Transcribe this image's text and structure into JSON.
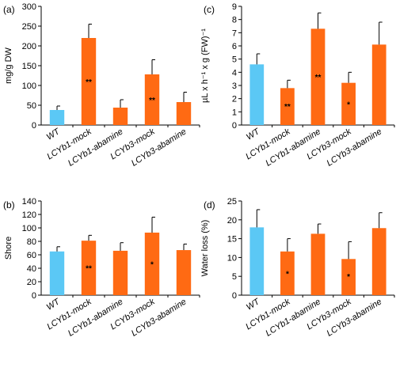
{
  "colors": {
    "control": "#5BC8F5",
    "treatment": "#FF6A13",
    "axis": "#000000"
  },
  "chart_data": [
    {
      "panel": "(a)",
      "type": "bar",
      "categories": [
        "WT",
        "LCYb1-mock",
        "LCYb1-abamine",
        "LCYb3-mock",
        "LCYb3-abamine"
      ],
      "values": [
        38,
        220,
        44,
        128,
        58
      ],
      "errors": [
        10,
        35,
        20,
        37,
        25
      ],
      "significance": [
        "",
        "**",
        "",
        "**",
        ""
      ],
      "ylabel": "mg/g DW",
      "ylim": [
        0,
        300
      ],
      "yticks": [
        "0",
        "50",
        "100",
        "150",
        "200",
        "250",
        "300"
      ]
    },
    {
      "panel": "(c)",
      "type": "bar",
      "categories": [
        "WT",
        "LCYb1-mock",
        "LCYb1-abamine",
        "LCYb3-mock",
        "LCYb3-abamine"
      ],
      "values": [
        4.6,
        2.8,
        7.3,
        3.2,
        6.1
      ],
      "errors": [
        0.8,
        0.6,
        1.2,
        0.8,
        1.7
      ],
      "significance": [
        "",
        "**",
        "**",
        "*",
        ""
      ],
      "ylabel": "µL x h⁻¹ x g (FW)⁻¹",
      "ylim": [
        0,
        9
      ],
      "yticks": [
        "0",
        "1",
        "2",
        "3",
        "4",
        "5",
        "6",
        "7",
        "8",
        "9"
      ]
    },
    {
      "panel": "(b)",
      "type": "bar",
      "categories": [
        "WT",
        "LCYb1-mock",
        "LCYb1-abamine",
        "LCYb3-mock",
        "LCYb3-abamine"
      ],
      "values": [
        65,
        81,
        66,
        93,
        67
      ],
      "errors": [
        7,
        8,
        12,
        23,
        9
      ],
      "significance": [
        "",
        "**",
        "",
        "*",
        ""
      ],
      "ylabel": "Shore",
      "ylim": [
        0,
        140
      ],
      "yticks": [
        "0",
        "20",
        "40",
        "60",
        "80",
        "100",
        "120",
        "140"
      ]
    },
    {
      "panel": "(d)",
      "type": "bar",
      "categories": [
        "WT",
        "LCYb1-mock",
        "LCYb1-abamine",
        "LCYb3-mock",
        "LCYb3-abamine"
      ],
      "values": [
        18,
        11.6,
        16.3,
        9.6,
        17.8
      ],
      "errors": [
        4.7,
        3.4,
        2.6,
        4.6,
        4.1
      ],
      "significance": [
        "",
        "*",
        "",
        "*",
        ""
      ],
      "ylabel": "Water loss (%)",
      "ylim": [
        0,
        25
      ],
      "yticks": [
        "0",
        "5",
        "10",
        "15",
        "20",
        "25"
      ]
    }
  ]
}
